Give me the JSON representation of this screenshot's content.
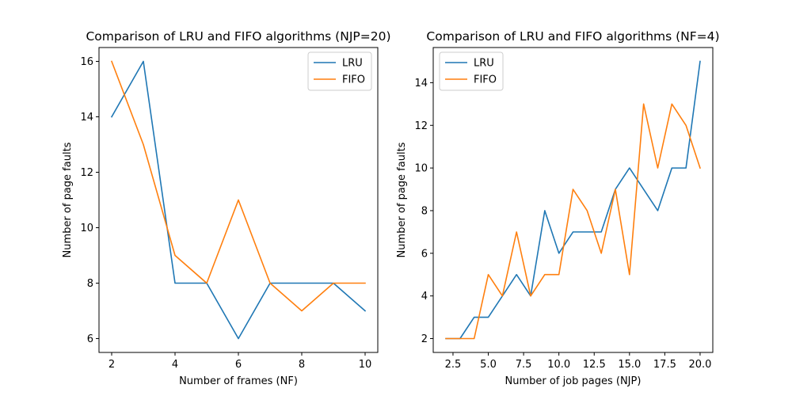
{
  "chart_data": [
    {
      "type": "line",
      "title": "Comparison of LRU and FIFO algorithms (NJP=20)",
      "xlabel": "Number of frames (NF)",
      "ylabel": "Number of page faults",
      "x": [
        2,
        3,
        4,
        5,
        6,
        7,
        8,
        9,
        10
      ],
      "xlim": [
        1.6,
        10.4
      ],
      "ylim": [
        5.5,
        16.5
      ],
      "xticks": [
        2,
        4,
        6,
        8,
        10
      ],
      "xtick_labels": [
        "2",
        "4",
        "6",
        "8",
        "10"
      ],
      "yticks": [
        6,
        8,
        10,
        12,
        14,
        16
      ],
      "ytick_labels": [
        "6",
        "8",
        "10",
        "12",
        "14",
        "16"
      ],
      "legend_position": "top-right",
      "grid": false,
      "series": [
        {
          "name": "LRU",
          "color": "#1f77b4",
          "values": [
            14,
            16,
            8,
            8,
            6,
            8,
            8,
            8,
            7
          ]
        },
        {
          "name": "FIFO",
          "color": "#ff7f0e",
          "values": [
            16,
            13,
            9,
            8,
            11,
            8,
            7,
            8,
            8
          ]
        }
      ]
    },
    {
      "type": "line",
      "title": "Comparison of LRU and FIFO algorithms (NF=4)",
      "xlabel": "Number of job pages (NJP)",
      "ylabel": "Number of page faults",
      "x": [
        2,
        3,
        4,
        5,
        6,
        7,
        8,
        9,
        10,
        11,
        12,
        13,
        14,
        15,
        16,
        17,
        18,
        19,
        20
      ],
      "xlim": [
        1.1,
        20.9
      ],
      "ylim": [
        1.35,
        15.65
      ],
      "xticks": [
        2.5,
        5,
        7.5,
        10,
        12.5,
        15,
        17.5,
        20
      ],
      "xtick_labels": [
        "2.5",
        "5.0",
        "7.5",
        "10.0",
        "12.5",
        "15.0",
        "17.5",
        "20.0"
      ],
      "yticks": [
        2,
        4,
        6,
        8,
        10,
        12,
        14
      ],
      "ytick_labels": [
        "2",
        "4",
        "6",
        "8",
        "10",
        "12",
        "14"
      ],
      "legend_position": "top-left",
      "grid": false,
      "series": [
        {
          "name": "LRU",
          "color": "#1f77b4",
          "values": [
            2,
            2,
            3,
            3,
            4,
            5,
            4,
            8,
            6,
            7,
            7,
            7,
            9,
            10,
            9,
            8,
            10,
            10,
            15
          ]
        },
        {
          "name": "FIFO",
          "color": "#ff7f0e",
          "values": [
            2,
            2,
            2,
            5,
            4,
            7,
            4,
            5,
            5,
            9,
            8,
            6,
            9,
            5,
            13,
            10,
            13,
            12,
            10
          ]
        }
      ]
    }
  ]
}
